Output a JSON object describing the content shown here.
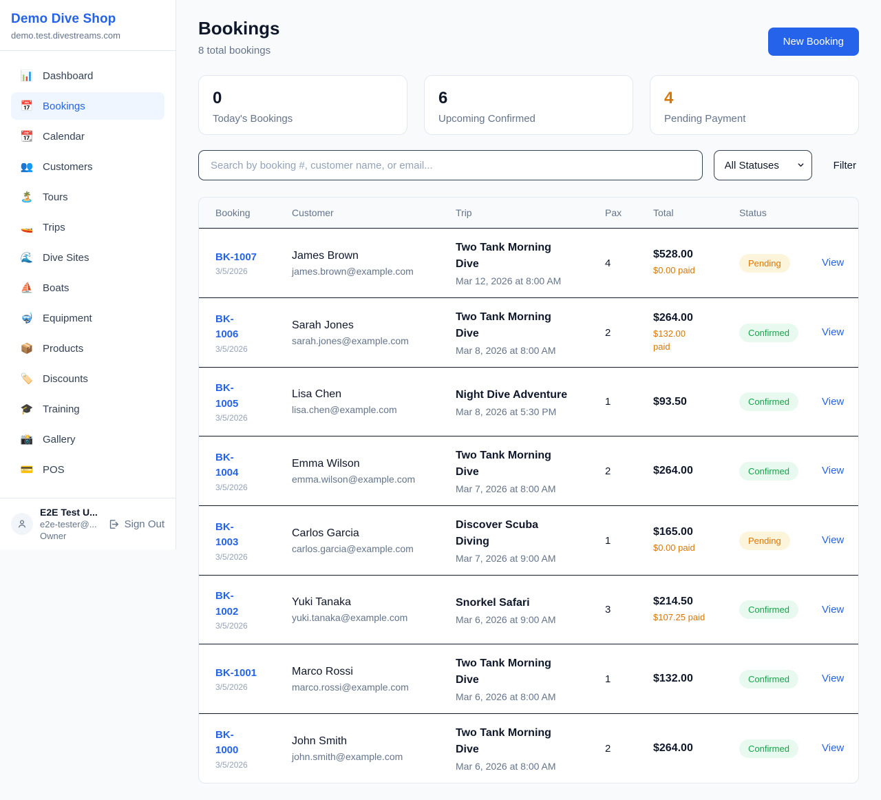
{
  "colors": {
    "accent_blue": "#2563eb",
    "orange": "#d97706",
    "green": "#16a34a",
    "dark_divider": "#111827",
    "card_border": "#e2e8f0",
    "page_bg": "#f8fafc"
  },
  "sidebar": {
    "brand": "Demo Dive Shop",
    "domain": "demo.test.divestreams.com",
    "items": [
      {
        "icon": "bar-chart-icon",
        "glyph": "📊",
        "label": "Dashboard",
        "active": false
      },
      {
        "icon": "calendar-icon",
        "glyph": "📅",
        "label": "Bookings",
        "active": true
      },
      {
        "icon": "tear-off-calendar-icon",
        "glyph": "📆",
        "label": "Calendar",
        "active": false
      },
      {
        "icon": "people-icon",
        "glyph": "👥",
        "label": "Customers",
        "active": false
      },
      {
        "icon": "island-icon",
        "glyph": "🏝️",
        "label": "Tours",
        "active": false
      },
      {
        "icon": "speedboat-icon",
        "glyph": "🚤",
        "label": "Trips",
        "active": false
      },
      {
        "icon": "wave-icon",
        "glyph": "🌊",
        "label": "Dive Sites",
        "active": false
      },
      {
        "icon": "sailboat-icon",
        "glyph": "⛵",
        "label": "Boats",
        "active": false
      },
      {
        "icon": "diving-mask-icon",
        "glyph": "🤿",
        "label": "Equipment",
        "active": false
      },
      {
        "icon": "package-icon",
        "glyph": "📦",
        "label": "Products",
        "active": false
      },
      {
        "icon": "tag-icon",
        "glyph": "🏷️",
        "label": "Discounts",
        "active": false
      },
      {
        "icon": "graduation-cap-icon",
        "glyph": "🎓",
        "label": "Training",
        "active": false
      },
      {
        "icon": "camera-icon",
        "glyph": "📸",
        "label": "Gallery",
        "active": false
      },
      {
        "icon": "credit-card-icon",
        "glyph": "💳",
        "label": "POS",
        "active": false
      }
    ],
    "user": {
      "name": "E2E Test U...",
      "email": "e2e-tester@...",
      "role": "Owner",
      "sign_out_label": "Sign Out"
    }
  },
  "header": {
    "title": "Bookings",
    "subtitle": "8 total bookings",
    "new_booking_label": "New Booking"
  },
  "stats": [
    {
      "value": "0",
      "label": "Today's Bookings",
      "accent": false
    },
    {
      "value": "6",
      "label": "Upcoming Confirmed",
      "accent": false
    },
    {
      "value": "4",
      "label": "Pending Payment",
      "accent": true
    }
  ],
  "filters": {
    "search_placeholder": "Search by booking #, customer name, or email...",
    "status_selected": "All Statuses",
    "filter_label": "Filter"
  },
  "table": {
    "columns": [
      "Booking",
      "Customer",
      "Trip",
      "Pax",
      "Total",
      "Status"
    ],
    "view_label": "View",
    "rows": [
      {
        "id_lines": [
          "BK-1007"
        ],
        "date": "3/5/2026",
        "customer": "James Brown",
        "email": "james.brown@example.com",
        "trip_lines": [
          "Two Tank Morning",
          "Dive"
        ],
        "trip_time": "Mar 12, 2026 at 8:00 AM",
        "pax": "4",
        "total": "$528.00",
        "paid_lines": [
          "$0.00 paid"
        ],
        "status": "Pending"
      },
      {
        "id_lines": [
          "BK-",
          "1006"
        ],
        "date": "3/5/2026",
        "customer": "Sarah Jones",
        "email": "sarah.jones@example.com",
        "trip_lines": [
          "Two Tank Morning",
          "Dive"
        ],
        "trip_time": "Mar 8, 2026 at 8:00 AM",
        "pax": "2",
        "total": "$264.00",
        "paid_lines": [
          "$132.00",
          "paid"
        ],
        "status": "Confirmed"
      },
      {
        "id_lines": [
          "BK-",
          "1005"
        ],
        "date": "3/5/2026",
        "customer": "Lisa Chen",
        "email": "lisa.chen@example.com",
        "trip_lines": [
          "Night Dive Adventure"
        ],
        "trip_time": "Mar 8, 2026 at 5:30 PM",
        "pax": "1",
        "total": "$93.50",
        "paid_lines": [],
        "status": "Confirmed"
      },
      {
        "id_lines": [
          "BK-",
          "1004"
        ],
        "date": "3/5/2026",
        "customer": "Emma Wilson",
        "email": "emma.wilson@example.com",
        "trip_lines": [
          "Two Tank Morning",
          "Dive"
        ],
        "trip_time": "Mar 7, 2026 at 8:00 AM",
        "pax": "2",
        "total": "$264.00",
        "paid_lines": [],
        "status": "Confirmed"
      },
      {
        "id_lines": [
          "BK-",
          "1003"
        ],
        "date": "3/5/2026",
        "customer": "Carlos Garcia",
        "email": "carlos.garcia@example.com",
        "trip_lines": [
          "Discover Scuba",
          "Diving"
        ],
        "trip_time": "Mar 7, 2026 at 9:00 AM",
        "pax": "1",
        "total": "$165.00",
        "paid_lines": [
          "$0.00 paid"
        ],
        "status": "Pending"
      },
      {
        "id_lines": [
          "BK-",
          "1002"
        ],
        "date": "3/5/2026",
        "customer": "Yuki Tanaka",
        "email": "yuki.tanaka@example.com",
        "trip_lines": [
          "Snorkel Safari"
        ],
        "trip_time": "Mar 6, 2026 at 9:00 AM",
        "pax": "3",
        "total": "$214.50",
        "paid_lines": [
          "$107.25 paid"
        ],
        "status": "Confirmed"
      },
      {
        "id_lines": [
          "BK-1001"
        ],
        "date": "3/5/2026",
        "customer": "Marco Rossi",
        "email": "marco.rossi@example.com",
        "trip_lines": [
          "Two Tank Morning",
          "Dive"
        ],
        "trip_time": "Mar 6, 2026 at 8:00 AM",
        "pax": "1",
        "total": "$132.00",
        "paid_lines": [],
        "status": "Confirmed"
      },
      {
        "id_lines": [
          "BK-",
          "1000"
        ],
        "date": "3/5/2026",
        "customer": "John Smith",
        "email": "john.smith@example.com",
        "trip_lines": [
          "Two Tank Morning",
          "Dive"
        ],
        "trip_time": "Mar 6, 2026 at 8:00 AM",
        "pax": "2",
        "total": "$264.00",
        "paid_lines": [],
        "status": "Confirmed"
      }
    ]
  }
}
